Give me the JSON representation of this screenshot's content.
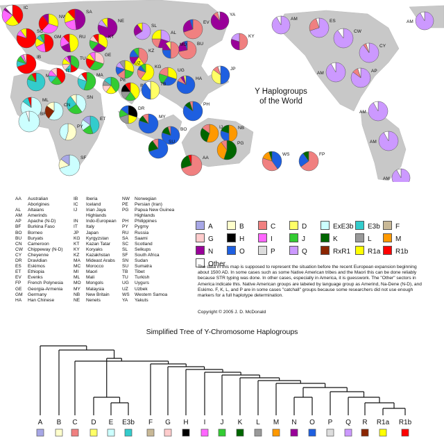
{
  "title": "Y Haplogroups\nof the World",
  "tree_title": "Simplified Tree of Y-Chromosome Haplogroups",
  "copyright": "Copyright © 2005 J. D. McDonald",
  "note": "The data in this map is supposed to represent the situation before the recent European expansion beginning about 1500 AD. In some cases such as some Native American tribes and the Maori this can be done reliably because STR typing was done. In other cases, especially in America, it is guesswork. The \"Other\" sectors in America indicate this. Native American groups are labeled by language group as Amerind, Na-Dene (N-D), and Eskimo.  F, K, L, and P are in some cases \"catchall\" groups because some researchers did not use enough markers for a full haplotype determination.",
  "colors": {
    "A": "#a7a7e6",
    "B": "#ffffcc",
    "C": "#f08080",
    "D": "#ffff66",
    "ExE3b": "#ccffff",
    "E3b": "#33cccc",
    "F": "#c8b896",
    "G": "#ffcccc",
    "H": "#000000",
    "I": "#ff66ff",
    "J": "#33cc33",
    "K": "#006600",
    "L": "#999999",
    "M": "#ff9900",
    "N": "#990099",
    "O": "#1e5fe0",
    "P": "#dddddd",
    "Q": "#cc99ff",
    "RxR1": "#8b2500",
    "R1a": "#ffff00",
    "R1b": "#ff0000",
    "Other": "#ffffff"
  },
  "legend": [
    {
      "key": "A",
      "label": "A"
    },
    {
      "key": "B",
      "label": "B"
    },
    {
      "key": "C",
      "label": "C"
    },
    {
      "key": "D",
      "label": "D"
    },
    {
      "key": "ExE3b",
      "label": "ExE3b"
    },
    {
      "key": "E3b",
      "label": "E3b"
    },
    {
      "key": "F",
      "label": "F"
    },
    {
      "key": "G",
      "label": "G"
    },
    {
      "key": "H",
      "label": "H"
    },
    {
      "key": "I",
      "label": "I"
    },
    {
      "key": "J",
      "label": "J"
    },
    {
      "key": "K",
      "label": "K"
    },
    {
      "key": "L",
      "label": "L"
    },
    {
      "key": "M",
      "label": "M"
    },
    {
      "key": "N",
      "label": "N"
    },
    {
      "key": "O",
      "label": "O"
    },
    {
      "key": "P",
      "label": "P"
    },
    {
      "key": "Q",
      "label": "Q"
    },
    {
      "key": "RxR1",
      "label": "RxR1"
    },
    {
      "key": "R1a",
      "label": "R1a"
    },
    {
      "key": "R1b",
      "label": "R1b"
    },
    {
      "key": "Other",
      "label": "Other"
    }
  ],
  "abbreviations": [
    [
      [
        "AA",
        "Australian"
      ],
      [
        "",
        "Aborigines"
      ],
      [
        "AL",
        "Altaians"
      ],
      [
        "AM",
        "Amerinds"
      ],
      [
        "AP",
        "Apache (N-D)"
      ],
      [
        "BF",
        "Burkina Faso"
      ],
      [
        "BO",
        "Borneo"
      ],
      [
        "BU",
        "Buryats"
      ],
      [
        "CN",
        "Cameroon"
      ],
      [
        "CW",
        "Chippeway (N-D)"
      ],
      [
        "CY",
        "Cheyenne"
      ],
      [
        "DR",
        "Dravidian"
      ],
      [
        "ES",
        "Eskimos"
      ],
      [
        "ET",
        "Ethiopia"
      ],
      [
        "EV",
        "Evenks"
      ],
      [
        "FP",
        "French Polynesia"
      ],
      [
        "GE",
        "Georgia-Armenia"
      ],
      [
        "GM",
        "Germany"
      ],
      [
        "HA",
        "Han Chinese"
      ]
    ],
    [
      [
        "IB",
        "Iberia"
      ],
      [
        "IC",
        "Iceland"
      ],
      [
        "IJ",
        "Irian Jaya"
      ],
      [
        "",
        "Highlands"
      ],
      [
        "IN",
        "Indo-European"
      ],
      [
        "IT",
        "Italy"
      ],
      [
        "JP",
        "Japan"
      ],
      [
        "KG",
        "Kyrgyzstan"
      ],
      [
        "KT",
        "Kazan Tatar"
      ],
      [
        "KY",
        "Koryaks"
      ],
      [
        "KZ",
        "Kazakhstan"
      ],
      [
        "MA",
        "Mideast Arabs"
      ],
      [
        "MC",
        "Morocco"
      ],
      [
        "MI",
        "Maori"
      ],
      [
        "ML",
        "Mali"
      ],
      [
        "MO",
        "Mongols"
      ],
      [
        "MY",
        "Malaysia"
      ],
      [
        "NB",
        "New Britain"
      ],
      [
        "NE",
        "Nenets"
      ]
    ],
    [
      [
        "NW",
        "Norwegian"
      ],
      [
        "PE",
        "Persian (Iran)"
      ],
      [
        "PG",
        "Papua New Guinea"
      ],
      [
        "",
        "Highlands"
      ],
      [
        "PH",
        "Philippines"
      ],
      [
        "PY",
        "Pygmy"
      ],
      [
        "RU",
        "Russia"
      ],
      [
        "SA",
        "Saami"
      ],
      [
        "SC",
        "Scotland"
      ],
      [
        "SL",
        "Selkups"
      ],
      [
        "SF",
        "South Africa"
      ],
      [
        "SN",
        "Sudan"
      ],
      [
        "SU",
        "Sumatra"
      ],
      [
        "TB",
        "Tibet"
      ],
      [
        "TU",
        "Turkish"
      ],
      [
        "UG",
        "Uygurs"
      ],
      [
        "UZ",
        "Uzbek"
      ],
      [
        "WS",
        "Western Samoa"
      ],
      [
        "YA",
        "Yakuts"
      ]
    ]
  ],
  "pie_labels": [
    {
      "code": "IC",
      "comp": [
        [
          "R1b",
          40
        ],
        [
          "R1a",
          22
        ],
        [
          "I",
          22
        ],
        [
          "N",
          4
        ],
        [
          "Other",
          12
        ]
      ]
    },
    {
      "code": "NW",
      "comp": [
        [
          "R1a",
          30
        ],
        [
          "I",
          32
        ],
        [
          "R1b",
          28
        ],
        [
          "N",
          10
        ]
      ]
    },
    {
      "code": "SA",
      "comp": [
        [
          "N",
          48
        ],
        [
          "I",
          22
        ],
        [
          "R1a",
          18
        ],
        [
          "R1b",
          12
        ]
      ]
    },
    {
      "code": "NE",
      "comp": [
        [
          "N",
          80
        ],
        [
          "Q",
          10
        ],
        [
          "R1a",
          10
        ]
      ]
    },
    {
      "code": "EV",
      "comp": [
        [
          "C",
          70
        ],
        [
          "N",
          25
        ],
        [
          "O",
          5
        ]
      ]
    },
    {
      "code": "YA",
      "comp": [
        [
          "N",
          88
        ],
        [
          "C",
          8
        ],
        [
          "Other",
          4
        ]
      ]
    },
    {
      "code": "AM",
      "comp": [
        [
          "Q",
          92
        ],
        [
          "Other",
          8
        ]
      ]
    },
    {
      "code": "ES",
      "comp": [
        [
          "Q",
          70
        ],
        [
          "C",
          25
        ],
        [
          "Other",
          5
        ]
      ]
    },
    {
      "code": "SC",
      "comp": [
        [
          "R1b",
          80
        ],
        [
          "I",
          10
        ],
        [
          "R1a",
          10
        ]
      ]
    },
    {
      "code": "GM",
      "comp": [
        [
          "R1b",
          48
        ],
        [
          "I",
          20
        ],
        [
          "R1a",
          16
        ],
        [
          "E3b",
          8
        ],
        [
          "J",
          8
        ]
      ]
    },
    {
      "code": "RU",
      "comp": [
        [
          "R1a",
          48
        ],
        [
          "N",
          20
        ],
        [
          "I",
          20
        ],
        [
          "R1b",
          12
        ]
      ]
    },
    {
      "code": "KT",
      "comp": [
        [
          "R1a",
          34
        ],
        [
          "N",
          28
        ],
        [
          "J",
          18
        ],
        [
          "G",
          10
        ],
        [
          "R1b",
          10
        ]
      ]
    },
    {
      "code": "SL",
      "comp": [
        [
          "Q",
          66
        ],
        [
          "N",
          24
        ],
        [
          "R1a",
          10
        ]
      ]
    },
    {
      "code": "AL",
      "comp": [
        [
          "Q",
          30
        ],
        [
          "N",
          25
        ],
        [
          "C",
          20
        ],
        [
          "R1a",
          25
        ]
      ]
    },
    {
      "code": "BU",
      "comp": [
        [
          "C",
          72
        ],
        [
          "N",
          22
        ],
        [
          "O",
          6
        ]
      ]
    },
    {
      "code": "KY",
      "comp": [
        [
          "C",
          50
        ],
        [
          "N",
          30
        ],
        [
          "Q",
          20
        ]
      ]
    },
    {
      "code": "IB",
      "comp": [
        [
          "R1b",
          70
        ],
        [
          "E3b",
          10
        ],
        [
          "J",
          10
        ],
        [
          "I",
          5
        ],
        [
          "G",
          5
        ]
      ]
    },
    {
      "code": "TU",
      "comp": [
        [
          "J",
          35
        ],
        [
          "R1b",
          15
        ],
        [
          "E3b",
          12
        ],
        [
          "G",
          12
        ],
        [
          "R1a",
          12
        ],
        [
          "I",
          7
        ],
        [
          "N",
          7
        ]
      ]
    },
    {
      "code": "GE",
      "comp": [
        [
          "G",
          30
        ],
        [
          "J",
          30
        ],
        [
          "R1b",
          20
        ],
        [
          "R1a",
          10
        ],
        [
          "I",
          10
        ]
      ]
    },
    {
      "code": "KZ",
      "comp": [
        [
          "C",
          40
        ],
        [
          "R1a",
          20
        ],
        [
          "N",
          15
        ],
        [
          "O",
          15
        ],
        [
          "J",
          10
        ]
      ]
    },
    {
      "code": "KG",
      "comp": [
        [
          "R1a",
          60
        ],
        [
          "C",
          20
        ],
        [
          "O",
          10
        ],
        [
          "J",
          10
        ]
      ]
    },
    {
      "code": "MO",
      "comp": [
        [
          "C",
          50
        ],
        [
          "O",
          25
        ],
        [
          "N",
          15
        ],
        [
          "D",
          10
        ]
      ]
    },
    {
      "code": "MC",
      "comp": [
        [
          "E3b",
          80
        ],
        [
          "J",
          12
        ],
        [
          "R1b",
          8
        ]
      ]
    },
    {
      "code": "IT",
      "comp": [
        [
          "R1b",
          40
        ],
        [
          "J",
          22
        ],
        [
          "E3b",
          14
        ],
        [
          "I",
          12
        ],
        [
          "G",
          12
        ]
      ]
    },
    {
      "code": "MA",
      "comp": [
        [
          "J",
          55
        ],
        [
          "E3b",
          25
        ],
        [
          "ExE3b",
          10
        ],
        [
          "R1b",
          10
        ]
      ]
    },
    {
      "code": "PE",
      "comp": [
        [
          "J",
          40
        ],
        [
          "R1a",
          20
        ],
        [
          "G",
          15
        ],
        [
          "L",
          10
        ],
        [
          "E3b",
          15
        ]
      ]
    },
    {
      "code": "UZ",
      "comp": [
        [
          "R1a",
          30
        ],
        [
          "J",
          20
        ],
        [
          "C",
          15
        ],
        [
          "O",
          15
        ],
        [
          "Q",
          10
        ],
        [
          "L",
          10
        ]
      ]
    },
    {
      "code": "UG",
      "comp": [
        [
          "R1a",
          30
        ],
        [
          "O",
          30
        ],
        [
          "J",
          20
        ],
        [
          "C",
          20
        ]
      ]
    },
    {
      "code": "IN",
      "comp": [
        [
          "R1a",
          40
        ],
        [
          "J",
          20
        ],
        [
          "L",
          15
        ],
        [
          "H",
          15
        ],
        [
          "R1b",
          10
        ]
      ]
    },
    {
      "code": "TB",
      "comp": [
        [
          "D",
          50
        ],
        [
          "O",
          40
        ],
        [
          "Other",
          10
        ]
      ]
    },
    {
      "code": "JP",
      "comp": [
        [
          "O",
          50
        ],
        [
          "D",
          35
        ],
        [
          "C",
          10
        ],
        [
          "Other",
          5
        ]
      ]
    },
    {
      "code": "HA",
      "comp": [
        [
          "O",
          82
        ],
        [
          "C",
          8
        ],
        [
          "N",
          6
        ],
        [
          "D",
          4
        ]
      ]
    },
    {
      "code": "ML",
      "comp": [
        [
          "ExE3b",
          85
        ],
        [
          "E3b",
          10
        ],
        [
          "R1b",
          5
        ]
      ]
    },
    {
      "code": "SN",
      "comp": [
        [
          "ExE3b",
          40
        ],
        [
          "J",
          25
        ],
        [
          "E3b",
          25
        ],
        [
          "B",
          10
        ]
      ]
    },
    {
      "code": "BF",
      "comp": [
        [
          "ExE3b",
          95
        ],
        [
          "Other",
          5
        ]
      ]
    },
    {
      "code": "CN",
      "comp": [
        [
          "ExE3b",
          60
        ],
        [
          "RxR1",
          25
        ],
        [
          "B",
          15
        ]
      ]
    },
    {
      "code": "ET",
      "comp": [
        [
          "E3b",
          45
        ],
        [
          "J",
          20
        ],
        [
          "ExE3b",
          20
        ],
        [
          "A",
          15
        ]
      ]
    },
    {
      "code": "PY",
      "comp": [
        [
          "B",
          55
        ],
        [
          "ExE3b",
          45
        ]
      ]
    },
    {
      "code": "SF",
      "comp": [
        [
          "ExE3b",
          70
        ],
        [
          "B",
          15
        ],
        [
          "A",
          15
        ]
      ]
    },
    {
      "code": "DR",
      "comp": [
        [
          "H",
          30
        ],
        [
          "R1a",
          20
        ],
        [
          "L",
          20
        ],
        [
          "J",
          15
        ],
        [
          "O",
          15
        ]
      ]
    },
    {
      "code": "MY",
      "comp": [
        [
          "O",
          80
        ],
        [
          "K",
          10
        ],
        [
          "C",
          10
        ]
      ]
    },
    {
      "code": "PH",
      "comp": [
        [
          "O",
          85
        ],
        [
          "K",
          10
        ],
        [
          "C",
          5
        ]
      ]
    },
    {
      "code": "BO",
      "comp": [
        [
          "O",
          80
        ],
        [
          "K",
          15
        ],
        [
          "C",
          5
        ]
      ]
    },
    {
      "code": "SU",
      "comp": [
        [
          "O",
          70
        ],
        [
          "K",
          20
        ],
        [
          "C",
          10
        ]
      ]
    },
    {
      "code": "IJ",
      "comp": [
        [
          "M",
          55
        ],
        [
          "K",
          30
        ],
        [
          "C",
          15
        ]
      ]
    },
    {
      "code": "NB",
      "comp": [
        [
          "M",
          50
        ],
        [
          "O",
          30
        ],
        [
          "K",
          20
        ]
      ]
    },
    {
      "code": "PG",
      "comp": [
        [
          "K",
          55
        ],
        [
          "M",
          35
        ],
        [
          "C",
          10
        ]
      ]
    },
    {
      "code": "AA",
      "comp": [
        [
          "C",
          70
        ],
        [
          "K",
          25
        ],
        [
          "R1b",
          5
        ]
      ]
    },
    {
      "code": "WS",
      "comp": [
        [
          "O",
          40
        ],
        [
          "C",
          40
        ],
        [
          "M",
          15
        ],
        [
          "K",
          5
        ]
      ]
    },
    {
      "code": "FP",
      "comp": [
        [
          "C",
          65
        ],
        [
          "O",
          25
        ],
        [
          "K",
          10
        ]
      ]
    },
    {
      "code": "MI",
      "comp": [
        [
          "C",
          85
        ],
        [
          "O",
          10
        ],
        [
          "K",
          5
        ]
      ]
    },
    {
      "code": "CW",
      "comp": [
        [
          "Q",
          90
        ],
        [
          "Other",
          10
        ]
      ]
    },
    {
      "code": "CY",
      "comp": [
        [
          "Q",
          90
        ],
        [
          "C",
          5
        ],
        [
          "Other",
          5
        ]
      ]
    },
    {
      "code": "AP",
      "comp": [
        [
          "Q",
          85
        ],
        [
          "C",
          10
        ],
        [
          "Other",
          5
        ]
      ]
    }
  ],
  "tree_leaves": [
    "A",
    "B",
    "C",
    "D",
    "E",
    "E3b",
    "F",
    "G",
    "H",
    "I",
    "J",
    "K",
    "L",
    "M",
    "N",
    "O",
    "P",
    "Q",
    "R",
    "R1a",
    "R1b"
  ],
  "tree_leaf_colors": [
    "A",
    "B",
    "C",
    "D",
    "ExE3b",
    "E3b",
    "F",
    "G",
    "H",
    "I",
    "J",
    "K",
    "L",
    "M",
    "N",
    "O",
    "P",
    "Q",
    "RxR1",
    "R1a",
    "R1b"
  ]
}
